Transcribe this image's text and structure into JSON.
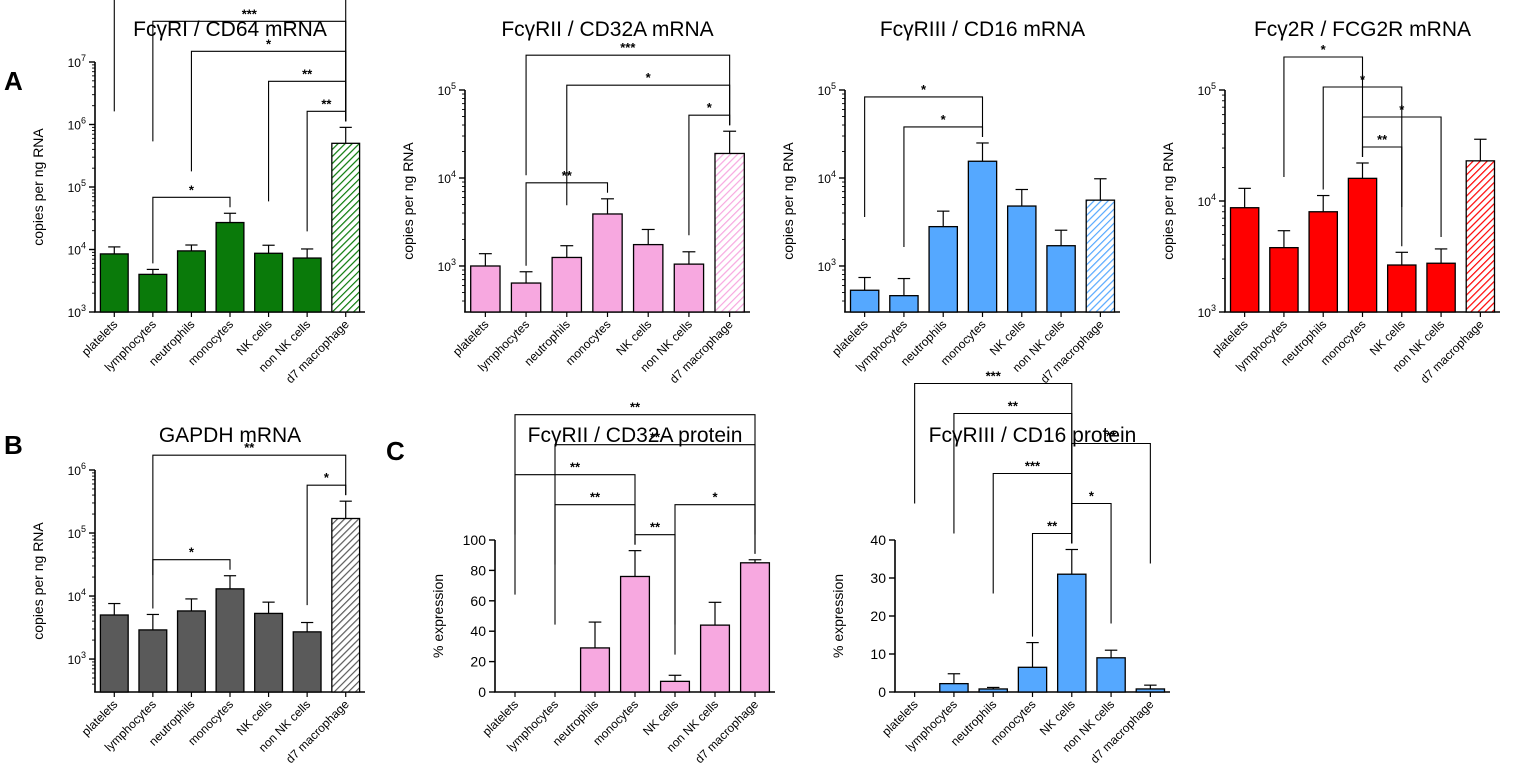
{
  "panel_letters": {
    "a": "A",
    "b": "B",
    "c": "C"
  },
  "chart_data": [
    {
      "id": "cd64",
      "type": "bar",
      "scale": "log",
      "title": "FcγRI / CD64 mRNA",
      "xlabel": "",
      "ylabel": "copies per ng RNA",
      "ylim": [
        1000,
        10000000
      ],
      "ticks": [
        {
          "v": 1000,
          "base": "10",
          "exp": "3"
        },
        {
          "v": 10000,
          "base": "10",
          "exp": "4"
        },
        {
          "v": 100000,
          "base": "10",
          "exp": "5"
        },
        {
          "v": 1000000,
          "base": "10",
          "exp": "6"
        },
        {
          "v": 10000000,
          "base": "10",
          "exp": "7"
        }
      ],
      "color": "#0a7a0a",
      "categories": [
        "platelets",
        "lymphocytes",
        "neutrophils",
        "monocytes",
        "NK cells",
        "non NK cells",
        "d7 macrophage"
      ],
      "values": [
        8500,
        4000,
        9500,
        27000,
        8700,
        7300,
        500000
      ],
      "errors": [
        11000,
        4800,
        11800,
        38000,
        11700,
        10200,
        900000
      ],
      "hatched": [
        false,
        false,
        false,
        false,
        false,
        false,
        true
      ],
      "significance": [
        {
          "from": 0,
          "to": 6,
          "label": "*"
        },
        {
          "from": 1,
          "to": 6,
          "label": "***"
        },
        {
          "from": 2,
          "to": 6,
          "label": "*"
        },
        {
          "from": 4,
          "to": 6,
          "label": "**"
        },
        {
          "from": 5,
          "to": 6,
          "label": "**"
        },
        {
          "from": 1,
          "to": 3,
          "label": "*"
        }
      ]
    },
    {
      "id": "cd32a",
      "type": "bar",
      "scale": "log",
      "title": "FcγRII / CD32A mRNA",
      "xlabel": "",
      "ylabel": "copies per ng RNA",
      "ylim": [
        300,
        100000
      ],
      "ticks": [
        {
          "v": 1000,
          "base": "10",
          "exp": "3"
        },
        {
          "v": 10000,
          "base": "10",
          "exp": "4"
        },
        {
          "v": 100000,
          "base": "10",
          "exp": "5"
        }
      ],
      "color": "#f7a8e0",
      "categories": [
        "platelets",
        "lymphocytes",
        "neutrophils",
        "monocytes",
        "NK cells",
        "non NK cells",
        "d7 macrophage"
      ],
      "values": [
        1000,
        640,
        1250,
        3900,
        1750,
        1050,
        19000
      ],
      "errors": [
        1380,
        860,
        1700,
        5800,
        2600,
        1450,
        34000
      ],
      "hatched": [
        false,
        false,
        false,
        false,
        false,
        false,
        true
      ],
      "significance": [
        {
          "from": 1,
          "to": 6,
          "label": "***"
        },
        {
          "from": 2,
          "to": 6,
          "label": "*"
        },
        {
          "from": 1,
          "to": 3,
          "label": "**"
        },
        {
          "from": 5,
          "to": 6,
          "label": "*"
        }
      ]
    },
    {
      "id": "cd16m",
      "type": "bar",
      "scale": "log",
      "title": "FcγRIII / CD16 mRNA",
      "xlabel": "",
      "ylabel": "copies per ng RNA",
      "ylim": [
        300,
        100000
      ],
      "ticks": [
        {
          "v": 1000,
          "base": "10",
          "exp": "3"
        },
        {
          "v": 10000,
          "base": "10",
          "exp": "4"
        },
        {
          "v": 100000,
          "base": "10",
          "exp": "5"
        }
      ],
      "color": "#55a8ff",
      "categories": [
        "platelets",
        "lymphocytes",
        "neutrophils",
        "monocytes",
        "NK cells",
        "non NK cells",
        "d7 macrophage"
      ],
      "values": [
        530,
        460,
        2800,
        15500,
        4800,
        1700,
        5600
      ],
      "errors": [
        740,
        720,
        4200,
        25000,
        7400,
        2550,
        9800
      ],
      "hatched": [
        false,
        false,
        false,
        false,
        false,
        false,
        true
      ],
      "significance": [
        {
          "from": 0,
          "to": 3,
          "label": "*"
        },
        {
          "from": 1,
          "to": 3,
          "label": "*"
        }
      ]
    },
    {
      "id": "fcg2r",
      "type": "bar",
      "scale": "log",
      "title": "Fcγ2R / FCG2R mRNA",
      "xlabel": "",
      "ylabel": "copies per ng RNA",
      "ylim": [
        1000,
        100000
      ],
      "ticks": [
        {
          "v": 1000,
          "base": "10",
          "exp": "3"
        },
        {
          "v": 10000,
          "base": "10",
          "exp": "4"
        },
        {
          "v": 100000,
          "base": "10",
          "exp": "5"
        }
      ],
      "color": "#ff0000",
      "categories": [
        "platelets",
        "lymphocytes",
        "neutrophils",
        "monocytes",
        "NK cells",
        "non NK cells",
        "d7 macrophage"
      ],
      "values": [
        8700,
        3800,
        8000,
        16000,
        2650,
        2750,
        23000
      ],
      "errors": [
        13000,
        5400,
        11200,
        22000,
        3450,
        3700,
        36000
      ],
      "hatched": [
        false,
        false,
        false,
        false,
        false,
        false,
        true
      ],
      "significance": [
        {
          "from": 3,
          "to": 5,
          "label": "*"
        },
        {
          "from": 2,
          "to": 4,
          "label": "*"
        },
        {
          "from": 1,
          "to": 3,
          "label": "*"
        },
        {
          "from": 3,
          "to": 4,
          "label": "**"
        }
      ]
    },
    {
      "id": "gapdh",
      "type": "bar",
      "scale": "log",
      "title": "GAPDH mRNA",
      "xlabel": "",
      "ylabel": "copies per ng RNA",
      "ylim": [
        300,
        1000000
      ],
      "ticks": [
        {
          "v": 1000,
          "base": "10",
          "exp": "3"
        },
        {
          "v": 10000,
          "base": "10",
          "exp": "4"
        },
        {
          "v": 100000,
          "base": "10",
          "exp": "5"
        },
        {
          "v": 1000000,
          "base": "10",
          "exp": "6"
        }
      ],
      "color": "#5a5a5a",
      "categories": [
        "platelets",
        "lymphocytes",
        "neutrophils",
        "monocytes",
        "NK cells",
        "non NK cells",
        "d7 macrophage"
      ],
      "values": [
        5000,
        2900,
        5800,
        13000,
        5300,
        2700,
        170000
      ],
      "errors": [
        7600,
        5100,
        9000,
        21000,
        8000,
        3800,
        320000
      ],
      "hatched": [
        false,
        false,
        false,
        false,
        false,
        false,
        true
      ],
      "significance": [
        {
          "from": 1,
          "to": 6,
          "label": "**"
        },
        {
          "from": 1,
          "to": 3,
          "label": "*"
        },
        {
          "from": 5,
          "to": 6,
          "label": "*"
        }
      ]
    },
    {
      "id": "cd32p",
      "type": "bar",
      "scale": "linear",
      "title": "FcγRII / CD32A protein",
      "xlabel": "",
      "ylabel": "% expression",
      "ylim": [
        0,
        100
      ],
      "ticks": [
        {
          "v": 0,
          "label": "0"
        },
        {
          "v": 20,
          "label": "20"
        },
        {
          "v": 40,
          "label": "40"
        },
        {
          "v": 60,
          "label": "60"
        },
        {
          "v": 80,
          "label": "80"
        },
        {
          "v": 100,
          "label": "100"
        }
      ],
      "color": "#f7a8e0",
      "categories": [
        "platelets",
        "lymphocytes",
        "neutrophils",
        "monocytes",
        "NK cells",
        "non NK cells",
        "d7 macrophage"
      ],
      "values": [
        0,
        0,
        29,
        76,
        7,
        44,
        85
      ],
      "errors": [
        0,
        0,
        46,
        93,
        11,
        59,
        87
      ],
      "hatched": [
        false,
        false,
        false,
        false,
        false,
        false,
        false
      ],
      "significance": [
        {
          "from": 0,
          "to": 6,
          "label": "**"
        },
        {
          "from": 1,
          "to": 6,
          "label": "**"
        },
        {
          "from": 0,
          "to": 3,
          "label": "**"
        },
        {
          "from": 1,
          "to": 3,
          "label": "**"
        },
        {
          "from": 3,
          "to": 4,
          "label": "**"
        },
        {
          "from": 4,
          "to": 6,
          "label": "*"
        }
      ]
    },
    {
      "id": "cd16p",
      "type": "bar",
      "scale": "linear",
      "title": "FcγRIII / CD16 protein",
      "xlabel": "",
      "ylabel": "% expression",
      "ylim": [
        0,
        40
      ],
      "ticks": [
        {
          "v": 0,
          "label": "0"
        },
        {
          "v": 10,
          "label": "10"
        },
        {
          "v": 20,
          "label": "20"
        },
        {
          "v": 30,
          "label": "30"
        },
        {
          "v": 40,
          "label": "40"
        }
      ],
      "color": "#55a8ff",
      "categories": [
        "platelets",
        "lymphocytes",
        "neutrophils",
        "monocytes",
        "NK cells",
        "non NK cells",
        "d7 macrophage"
      ],
      "values": [
        0,
        2.2,
        0.8,
        6.5,
        31,
        9,
        0.8
      ],
      "errors": [
        0,
        4.8,
        1.2,
        13,
        37.5,
        11,
        1.8
      ],
      "hatched": [
        false,
        false,
        false,
        false,
        false,
        false,
        false
      ],
      "significance": [
        {
          "from": 0,
          "to": 4,
          "label": "***"
        },
        {
          "from": 1,
          "to": 4,
          "label": "**"
        },
        {
          "from": 2,
          "to": 4,
          "label": "***"
        },
        {
          "from": 4,
          "to": 6,
          "label": "**"
        },
        {
          "from": 3,
          "to": 4,
          "label": "**"
        },
        {
          "from": 4,
          "to": 5,
          "label": "*"
        }
      ]
    }
  ]
}
